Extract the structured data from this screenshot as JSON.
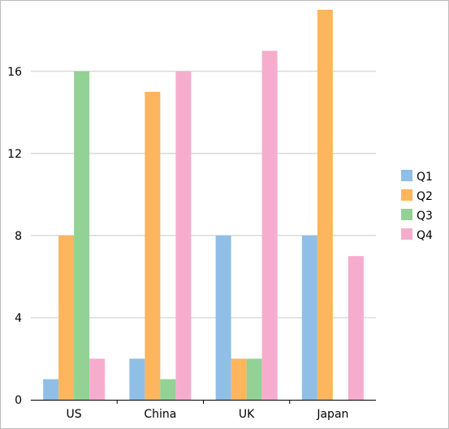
{
  "chart_data": {
    "type": "bar",
    "title": "",
    "xlabel": "",
    "ylabel": "",
    "categories": [
      "US",
      "China",
      "UK",
      "Japan"
    ],
    "series": [
      {
        "name": "Q1",
        "color": "#8fbfe6",
        "values": [
          1,
          2,
          8,
          8
        ]
      },
      {
        "name": "Q2",
        "color": "#fdb55e",
        "values": [
          8,
          15,
          2,
          19
        ]
      },
      {
        "name": "Q3",
        "color": "#93d194",
        "values": [
          16,
          1,
          2,
          0
        ]
      },
      {
        "name": "Q4",
        "color": "#f6adcd",
        "values": [
          2,
          16,
          17,
          7
        ]
      }
    ],
    "ylim": [
      0,
      19
    ],
    "yticks": [
      0,
      4,
      8,
      12,
      16
    ],
    "grid": true,
    "legend": "right"
  }
}
